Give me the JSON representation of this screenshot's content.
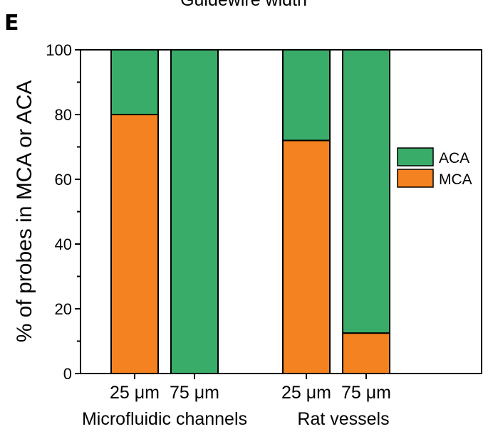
{
  "panel_letter": "E",
  "chart_data": {
    "type": "bar",
    "stacked": true,
    "title": "Guidewire width",
    "ylabel": "% of probes in MCA or ACA",
    "ylim": [
      0,
      100
    ],
    "yticks": [
      0,
      20,
      40,
      60,
      80,
      100
    ],
    "categories": [
      "25 μm",
      "75 μm",
      "25 μm",
      "75 μm"
    ],
    "groups": [
      {
        "label": "Microfluidic channels",
        "categories": [
          0,
          1
        ]
      },
      {
        "label": "Rat vessels",
        "categories": [
          2,
          3
        ]
      }
    ],
    "series": [
      {
        "name": "MCA",
        "color": "#f58220",
        "values": [
          80,
          0,
          72,
          12.5
        ]
      },
      {
        "name": "ACA",
        "color": "#3aac6a",
        "values": [
          20,
          100,
          28,
          87.5
        ]
      }
    ],
    "legend": {
      "position": "right",
      "order": [
        "ACA",
        "MCA"
      ]
    },
    "grid": false
  }
}
